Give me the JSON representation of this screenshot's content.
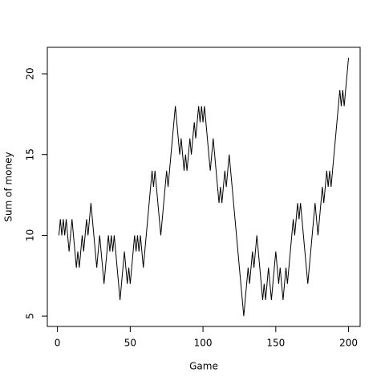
{
  "chart_data": {
    "type": "line",
    "xlabel": "Game",
    "ylabel": "Sum of money",
    "color": "#000000",
    "x": [
      1,
      2,
      3,
      4,
      5,
      6,
      7,
      8,
      9,
      10,
      11,
      12,
      13,
      14,
      15,
      16,
      17,
      18,
      19,
      20,
      21,
      22,
      23,
      24,
      25,
      26,
      27,
      28,
      29,
      30,
      31,
      32,
      33,
      34,
      35,
      36,
      37,
      38,
      39,
      40,
      41,
      42,
      43,
      44,
      45,
      46,
      47,
      48,
      49,
      50,
      51,
      52,
      53,
      54,
      55,
      56,
      57,
      58,
      59,
      60,
      61,
      62,
      63,
      64,
      65,
      66,
      67,
      68,
      69,
      70,
      71,
      72,
      73,
      74,
      75,
      76,
      77,
      78,
      79,
      80,
      81,
      82,
      83,
      84,
      85,
      86,
      87,
      88,
      89,
      90,
      91,
      92,
      93,
      94,
      95,
      96,
      97,
      98,
      99,
      100,
      101,
      102,
      103,
      104,
      105,
      106,
      107,
      108,
      109,
      110,
      111,
      112,
      113,
      114,
      115,
      116,
      117,
      118,
      119,
      120,
      121,
      122,
      123,
      124,
      125,
      126,
      127,
      128,
      129,
      130,
      131,
      132,
      133,
      134,
      135,
      136,
      137,
      138,
      139,
      140,
      141,
      142,
      143,
      144,
      145,
      146,
      147,
      148,
      149,
      150,
      151,
      152,
      153,
      154,
      155,
      156,
      157,
      158,
      159,
      160,
      161,
      162,
      163,
      164,
      165,
      166,
      167,
      168,
      169,
      170,
      171,
      172,
      173,
      174,
      175,
      176,
      177,
      178,
      179,
      180,
      181,
      182,
      183,
      184,
      185,
      186,
      187,
      188,
      189,
      190,
      191,
      192,
      193,
      194,
      195,
      196,
      197,
      198,
      199,
      200
    ],
    "values": [
      10,
      11,
      10,
      11,
      10,
      11,
      10,
      9,
      10,
      11,
      10,
      9,
      8,
      9,
      8,
      9,
      10,
      9,
      10,
      11,
      10,
      11,
      12,
      11,
      10,
      9,
      8,
      9,
      10,
      9,
      8,
      7,
      8,
      9,
      10,
      9,
      10,
      9,
      10,
      9,
      8,
      7,
      6,
      7,
      8,
      9,
      8,
      7,
      8,
      7,
      8,
      9,
      10,
      9,
      10,
      9,
      10,
      9,
      8,
      9,
      10,
      11,
      12,
      13,
      14,
      13,
      14,
      13,
      12,
      11,
      10,
      11,
      12,
      13,
      14,
      13,
      14,
      15,
      16,
      17,
      18,
      17,
      16,
      15,
      16,
      15,
      14,
      15,
      14,
      15,
      16,
      15,
      16,
      17,
      16,
      17,
      18,
      17,
      18,
      17,
      18,
      17,
      16,
      15,
      14,
      15,
      16,
      15,
      14,
      13,
      12,
      13,
      12,
      13,
      14,
      13,
      14,
      15,
      14,
      13,
      12,
      11,
      10,
      9,
      8,
      7,
      6,
      5,
      6,
      7,
      8,
      7,
      8,
      9,
      8,
      9,
      10,
      9,
      8,
      7,
      6,
      7,
      6,
      7,
      8,
      7,
      6,
      7,
      8,
      9,
      8,
      7,
      8,
      7,
      6,
      7,
      8,
      7,
      8,
      9,
      10,
      11,
      10,
      11,
      12,
      11,
      12,
      11,
      10,
      9,
      8,
      7,
      8,
      9,
      10,
      11,
      12,
      11,
      10,
      11,
      12,
      13,
      12,
      13,
      14,
      13,
      14,
      13,
      14,
      15,
      16,
      17,
      18,
      19,
      18,
      19,
      18,
      19,
      20,
      21
    ],
    "xlim": [
      -6.96,
      207.96
    ],
    "ylim": [
      4.36,
      21.64
    ],
    "xticks": [
      0,
      50,
      100,
      150,
      200
    ],
    "yticks": [
      5,
      10,
      15,
      20
    ]
  }
}
